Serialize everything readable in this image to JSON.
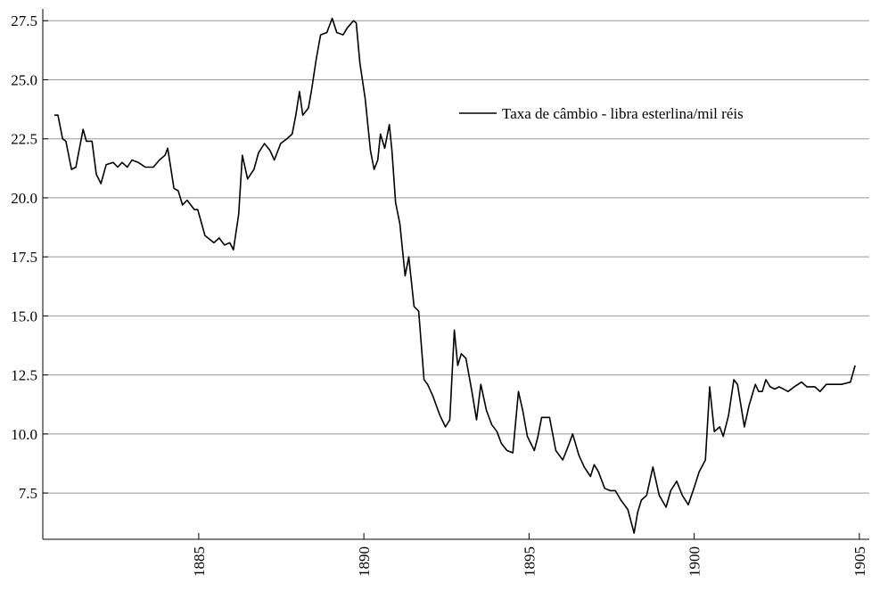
{
  "chart_data": {
    "type": "line",
    "series": [
      {
        "name": "Taxa de câmbio - libra esterlina/mil réis",
        "color": "#000000",
        "x": [
          1880.63,
          1880.74,
          1880.88,
          1880.98,
          1881.15,
          1881.28,
          1881.5,
          1881.6,
          1881.77,
          1881.9,
          1882.04,
          1882.2,
          1882.41,
          1882.55,
          1882.68,
          1882.84,
          1882.98,
          1883.17,
          1883.38,
          1883.63,
          1883.81,
          1883.98,
          1884.06,
          1884.25,
          1884.38,
          1884.51,
          1884.65,
          1884.87,
          1884.97,
          1885.19,
          1885.46,
          1885.62,
          1885.78,
          1885.94,
          1886.05,
          1886.21,
          1886.32,
          1886.48,
          1886.67,
          1886.81,
          1886.99,
          1887.16,
          1887.29,
          1887.48,
          1887.67,
          1887.83,
          1887.94,
          1888.05,
          1888.15,
          1888.32,
          1888.42,
          1888.56,
          1888.69,
          1888.88,
          1889.04,
          1889.18,
          1889.37,
          1889.5,
          1889.69,
          1889.77,
          1889.88,
          1890.04,
          1890.2,
          1890.31,
          1890.42,
          1890.5,
          1890.63,
          1890.77,
          1890.85,
          1890.96,
          1891.09,
          1891.25,
          1891.36,
          1891.52,
          1891.66,
          1891.82,
          1891.93,
          1892.09,
          1892.3,
          1892.47,
          1892.6,
          1892.74,
          1892.84,
          1892.95,
          1893.09,
          1893.27,
          1893.41,
          1893.54,
          1893.71,
          1893.87,
          1894.03,
          1894.16,
          1894.33,
          1894.51,
          1894.68,
          1894.81,
          1894.95,
          1895.16,
          1895.27,
          1895.38,
          1895.62,
          1895.81,
          1896.02,
          1896.19,
          1896.32,
          1896.51,
          1896.67,
          1896.86,
          1896.97,
          1897.1,
          1897.29,
          1897.45,
          1897.61,
          1897.78,
          1897.99,
          1898.18,
          1898.29,
          1898.4,
          1898.56,
          1898.75,
          1898.94,
          1899.15,
          1899.29,
          1899.47,
          1899.64,
          1899.82,
          1899.99,
          1900.15,
          1900.34,
          1900.47,
          1900.61,
          1900.77,
          1900.88,
          1901.04,
          1901.2,
          1901.31,
          1901.52,
          1901.66,
          1901.85,
          1901.95,
          1902.06,
          1902.17,
          1902.3,
          1902.44,
          1902.57,
          1902.84,
          1903.03,
          1903.25,
          1903.41,
          1903.65,
          1903.81,
          1904.0,
          1904.19,
          1904.46,
          1904.73,
          1904.87
        ],
        "values": [
          23.5,
          23.5,
          22.5,
          22.4,
          21.2,
          21.3,
          22.9,
          22.4,
          22.4,
          21.0,
          20.6,
          21.4,
          21.5,
          21.3,
          21.5,
          21.3,
          21.6,
          21.5,
          21.3,
          21.3,
          21.6,
          21.8,
          22.1,
          20.4,
          20.3,
          19.7,
          19.9,
          19.5,
          19.5,
          18.4,
          18.1,
          18.3,
          18.0,
          18.1,
          17.8,
          19.3,
          21.8,
          20.8,
          21.2,
          21.9,
          22.3,
          22.0,
          21.6,
          22.3,
          22.5,
          22.7,
          23.5,
          24.5,
          23.5,
          23.8,
          24.6,
          25.9,
          26.9,
          27.0,
          27.6,
          27.0,
          26.9,
          27.2,
          27.5,
          27.4,
          25.7,
          24.2,
          22.0,
          21.2,
          21.6,
          22.7,
          22.1,
          23.1,
          22.0,
          19.8,
          18.9,
          16.7,
          17.5,
          15.4,
          15.2,
          12.3,
          12.1,
          11.6,
          10.8,
          10.3,
          10.6,
          14.4,
          12.9,
          13.4,
          13.2,
          11.8,
          10.6,
          12.1,
          11.0,
          10.4,
          10.1,
          9.6,
          9.3,
          9.2,
          11.8,
          11.0,
          9.9,
          9.3,
          9.9,
          10.7,
          10.7,
          9.3,
          8.9,
          9.5,
          10.0,
          9.1,
          8.6,
          8.2,
          8.7,
          8.4,
          7.7,
          7.6,
          7.6,
          7.2,
          6.8,
          5.8,
          6.7,
          7.2,
          7.4,
          8.6,
          7.4,
          6.9,
          7.6,
          8.0,
          7.4,
          7.0,
          7.7,
          8.4,
          8.9,
          12.0,
          10.1,
          10.3,
          9.9,
          10.8,
          12.3,
          12.1,
          10.3,
          11.2,
          12.1,
          11.8,
          11.8,
          12.3,
          12.0,
          11.9,
          12.0,
          11.8,
          12.0,
          12.2,
          12.0,
          12.0,
          11.8,
          12.1,
          12.1,
          12.1,
          12.2,
          12.9
        ]
      }
    ],
    "xlim": [
      1880.28,
      1905.3
    ],
    "ylim": [
      5.54,
      28.0
    ],
    "xticks": [
      1885,
      1890,
      1895,
      1900,
      1905
    ],
    "yticks": [
      {
        "value": 7.5,
        "label": "7.5"
      },
      {
        "value": 10,
        "label": "10.0"
      },
      12.5,
      {
        "value": 15,
        "label": "15.0"
      },
      17.5,
      {
        "value": 20,
        "label": "20.0"
      },
      22.5,
      {
        "value": 25,
        "label": "25.0"
      },
      27.5
    ],
    "grid": true,
    "legend": "top-center"
  }
}
